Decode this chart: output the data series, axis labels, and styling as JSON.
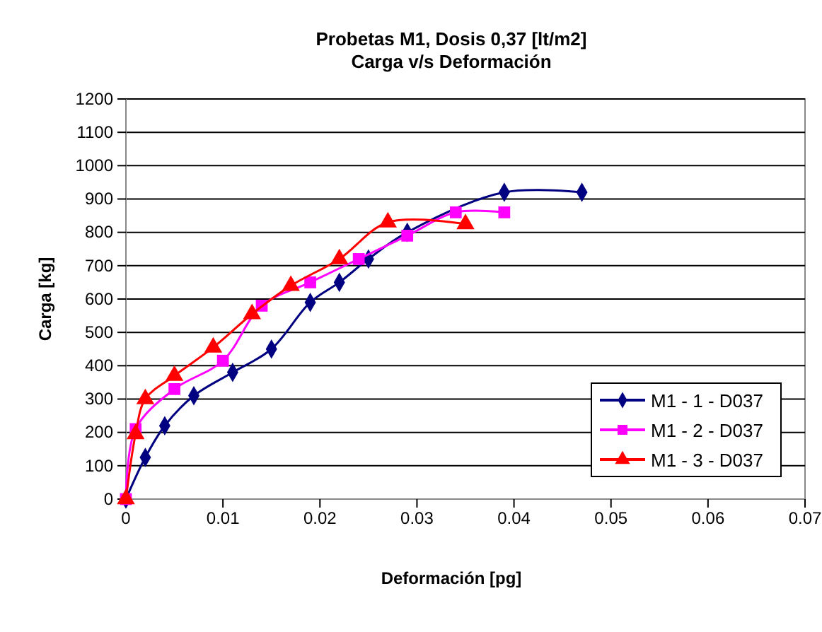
{
  "chart_data": {
    "type": "line",
    "title": "Probetas M1, Dosis 0,37 [lt/m2]\nCarga v/s Deformación",
    "xlabel": "Deformación [pg]",
    "ylabel": "Carga [kg]",
    "xlim": [
      0,
      0.07
    ],
    "xticks": [
      0,
      0.01,
      0.02,
      0.03,
      0.04,
      0.05,
      0.06,
      0.07
    ],
    "ylim": [
      0,
      1200
    ],
    "yticks": [
      0,
      100,
      200,
      300,
      400,
      500,
      600,
      700,
      800,
      900,
      1000,
      1100,
      1200
    ],
    "grid": "y",
    "legend": "bottom right",
    "series": [
      {
        "name": "M1 - 1 - D037",
        "color": "#000080",
        "marker": "diamond",
        "x": [
          0,
          0.002,
          0.004,
          0.007,
          0.011,
          0.015,
          0.019,
          0.022,
          0.025,
          0.029,
          0.039,
          0.047
        ],
        "values": [
          0,
          125,
          220,
          310,
          380,
          450,
          590,
          650,
          720,
          800,
          920,
          920
        ]
      },
      {
        "name": "M1 - 2 - D037",
        "color": "#ff00ff",
        "marker": "square",
        "x": [
          0,
          0.001,
          0.005,
          0.01,
          0.014,
          0.019,
          0.024,
          0.029,
          0.034,
          0.039
        ],
        "values": [
          0,
          210,
          330,
          415,
          580,
          650,
          720,
          790,
          860,
          860
        ]
      },
      {
        "name": "M1 - 3 - D037",
        "color": "#ff0000",
        "marker": "triangle",
        "x": [
          0,
          0.001,
          0.002,
          0.005,
          0.009,
          0.013,
          0.017,
          0.022,
          0.027,
          0.035
        ],
        "values": [
          0,
          195,
          300,
          370,
          455,
          555,
          640,
          720,
          830,
          825
        ]
      }
    ]
  }
}
